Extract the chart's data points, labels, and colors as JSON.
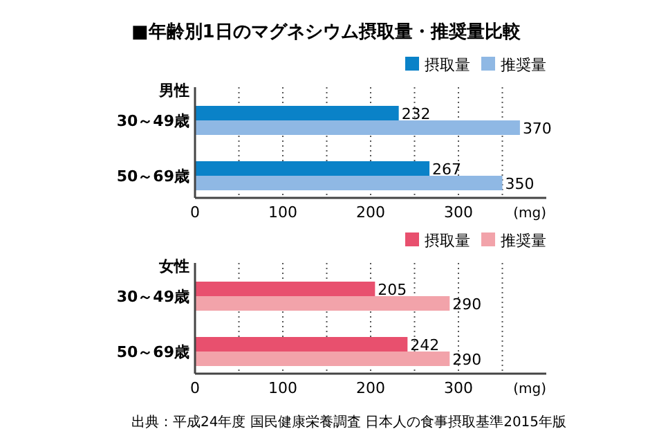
{
  "chart_data": [
    {
      "type": "bar",
      "orientation": "horizontal",
      "title": "■年齢別1日のマグネシウム摂取量・推奨量比較",
      "ylabel": "男性",
      "categories": [
        "30～49歳",
        "50～69歳"
      ],
      "series": [
        {
          "name": "摂取量",
          "color": "#0a82c8",
          "values": [
            232,
            267
          ]
        },
        {
          "name": "推奨量",
          "color": "#8fb8e4",
          "values": [
            370,
            350
          ]
        }
      ],
      "xlim": [
        0,
        400
      ],
      "xticks": [
        0,
        {
          "value": 50,
          "label": null
        },
        100,
        {
          "value": 150,
          "label": null
        },
        200,
        {
          "value": 250,
          "label": null
        },
        300,
        {
          "value": 350,
          "label": null
        }
      ],
      "xlabel": "(mg)",
      "grid": "x",
      "legend": "top right",
      "data_labels": true
    },
    {
      "type": "bar",
      "orientation": "horizontal",
      "ylabel": "女性",
      "categories": [
        "30～49歳",
        "50～69歳"
      ],
      "series": [
        {
          "name": "摂取量",
          "color": "#e8506e",
          "values": [
            205,
            242
          ]
        },
        {
          "name": "推奨量",
          "color": "#f2a3aa",
          "values": [
            290,
            290
          ]
        }
      ],
      "xlim": [
        0,
        400
      ],
      "xticks": [
        0,
        {
          "value": 50,
          "label": null
        },
        100,
        {
          "value": 150,
          "label": null
        },
        200,
        {
          "value": 250,
          "label": null
        },
        300,
        {
          "value": 350,
          "label": null
        }
      ],
      "xlabel": "(mg)",
      "grid": "x",
      "legend": "top right",
      "data_labels": true,
      "annotations": [
        "出典：平成24年度 国民健康栄養調査 日本人の食事摂取基準2015年版"
      ]
    }
  ]
}
